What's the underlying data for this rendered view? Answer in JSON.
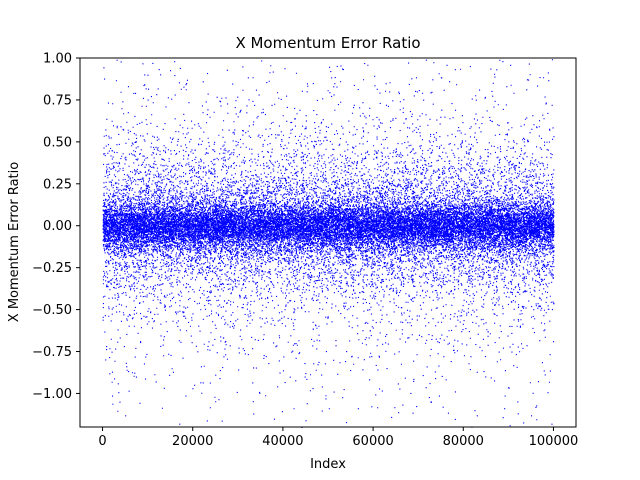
{
  "chart_data": {
    "type": "scatter",
    "title": "X Momentum Error Ratio",
    "xlabel": "Index",
    "ylabel": "X Momentum Error Ratio",
    "xlim": [
      -5000,
      105000
    ],
    "ylim": [
      -1.2,
      1.0
    ],
    "x_ticks": [
      0,
      20000,
      40000,
      60000,
      80000,
      100000
    ],
    "x_tick_labels": [
      "0",
      "20000",
      "40000",
      "60000",
      "80000",
      "100000"
    ],
    "y_ticks": [
      -1.0,
      -0.75,
      -0.5,
      -0.25,
      0.0,
      0.25,
      0.5,
      0.75,
      1.0
    ],
    "y_tick_labels": [
      "−1.00",
      "−0.75",
      "−0.50",
      "−0.25",
      "0.00",
      "0.25",
      "0.50",
      "0.75",
      "1.00"
    ],
    "grid": false,
    "legend": "none",
    "marker_color": "#0000ff",
    "series": [
      {
        "x_range": [
          0,
          100000
        ],
        "n_points": 100000,
        "distribution": "dense band centered at 0; most values within ±0.25, sparse scatter out to ±1.0, a few below −1.0",
        "sample_points": [
          [
            5000,
            -1.13
          ],
          [
            17000,
            -1.18
          ],
          [
            38000,
            -1.15
          ],
          [
            45000,
            -1.16
          ],
          [
            54000,
            -1.17
          ],
          [
            64000,
            -1.14
          ],
          [
            83000,
            -1.13
          ],
          [
            96000,
            -1.08
          ],
          [
            2000,
            -0.93
          ],
          [
            26000,
            -0.86
          ],
          [
            71000,
            -0.89
          ],
          [
            99000,
            -0.93
          ],
          [
            4000,
            0.98
          ],
          [
            31000,
            0.95
          ],
          [
            58000,
            0.97
          ],
          [
            88000,
            0.99
          ]
        ]
      }
    ]
  }
}
